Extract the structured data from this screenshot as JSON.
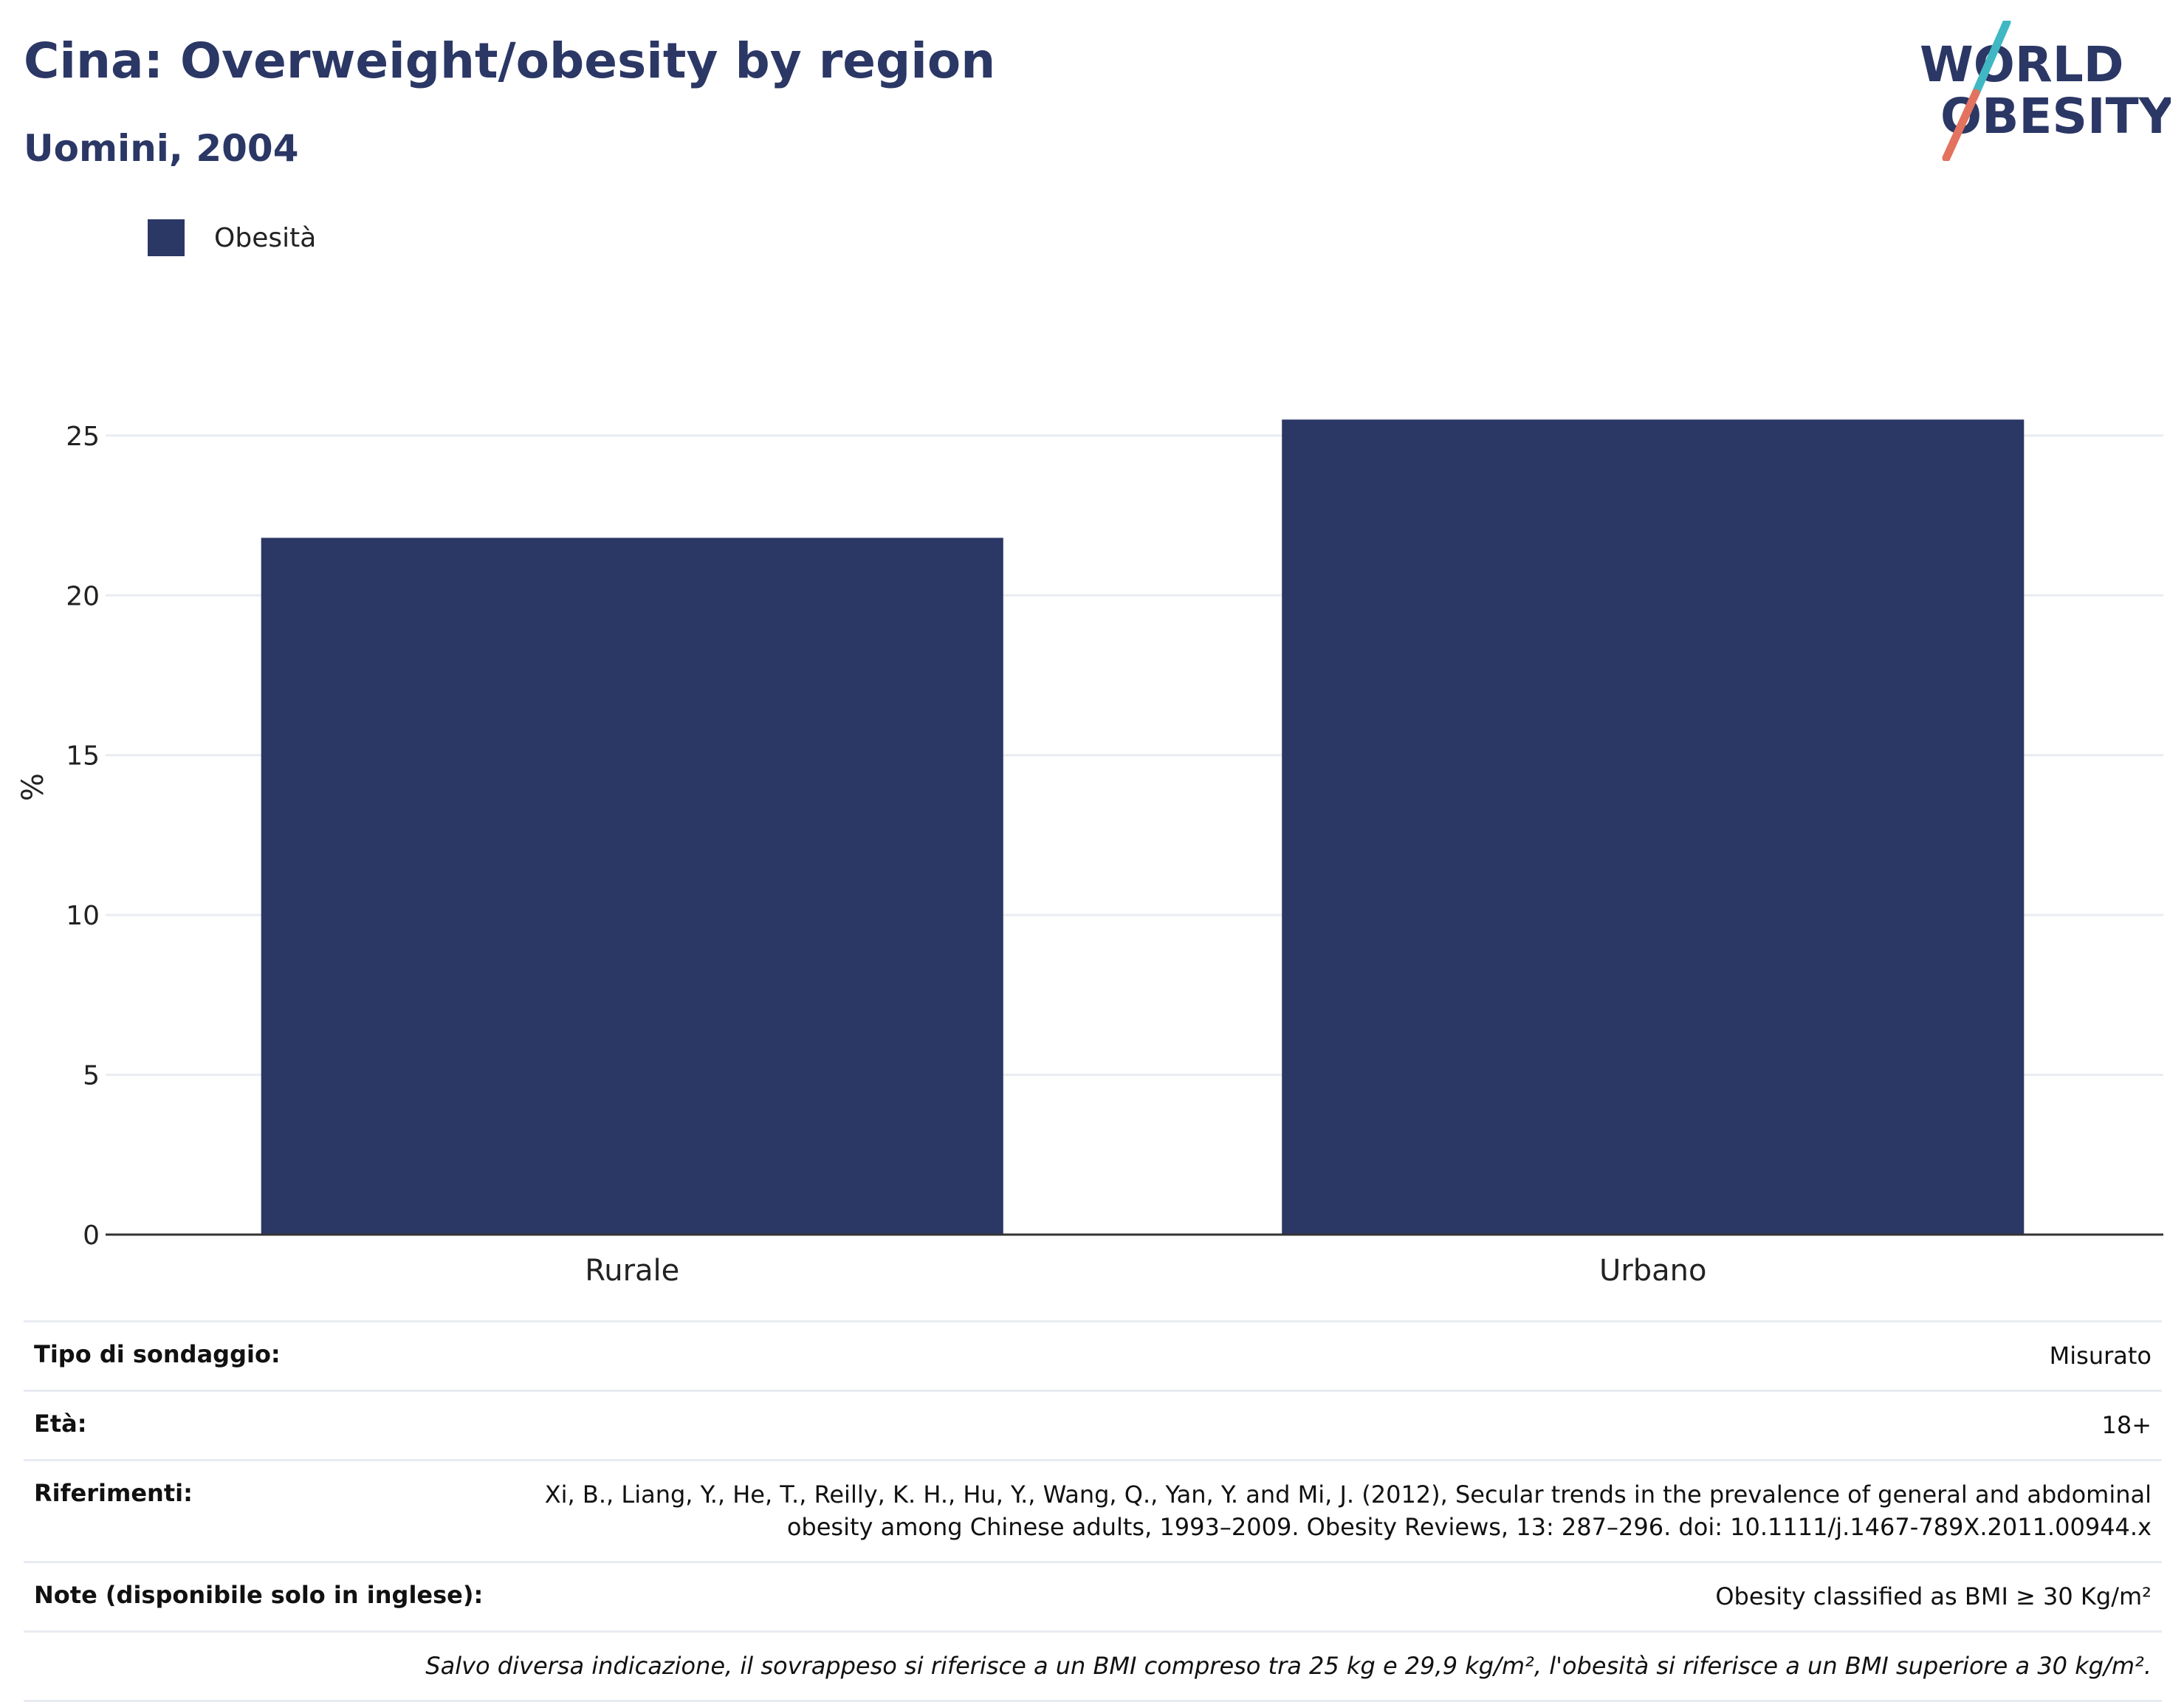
{
  "header": {
    "title": "Cina: Overweight/obesity by region",
    "subtitle": "Uomini, 2004",
    "logo_line1": "WORLD",
    "logo_line2": "OBESITY"
  },
  "legend": {
    "label": "Obesità",
    "color": "#2b3765"
  },
  "chart_data": {
    "type": "bar",
    "categories": [
      "Rurale",
      "Urbano"
    ],
    "series": [
      {
        "name": "Obesità",
        "values": [
          21.8,
          25.5
        ]
      }
    ],
    "ylabel": "%",
    "ylim": [
      0,
      28
    ],
    "yticks": [
      0,
      5,
      10,
      15,
      20,
      25
    ],
    "grid": true,
    "legend_position": "top-left",
    "bar_color": "#2b3765"
  },
  "info": {
    "survey_type_label": "Tipo di sondaggio:",
    "survey_type_value": "Misurato",
    "age_label": "Età:",
    "age_value": "18+",
    "references_label": "Riferimenti:",
    "references_value_line1": "Xi, B., Liang, Y., He, T., Reilly, K. H., Hu, Y., Wang, Q., Yan, Y. and Mi, J. (2012), Secular trends in the prevalence of general and abdominal",
    "references_value_line2": "obesity among Chinese adults, 1993–2009. Obesity Reviews, 13: 287–296. doi: 10.1111/j.1467-789X.2011.00944.x",
    "notes_label": "Note (disponibile solo in inglese):",
    "notes_value": "Obesity classified as BMI ≥ 30 Kg/m²",
    "footnote": "Salvo diversa indicazione, il sovrappeso si riferisce a un BMI compreso tra 25 kg e 29,9 kg/m², l'obesità si riferisce a un BMI superiore a 30 kg/m²."
  }
}
